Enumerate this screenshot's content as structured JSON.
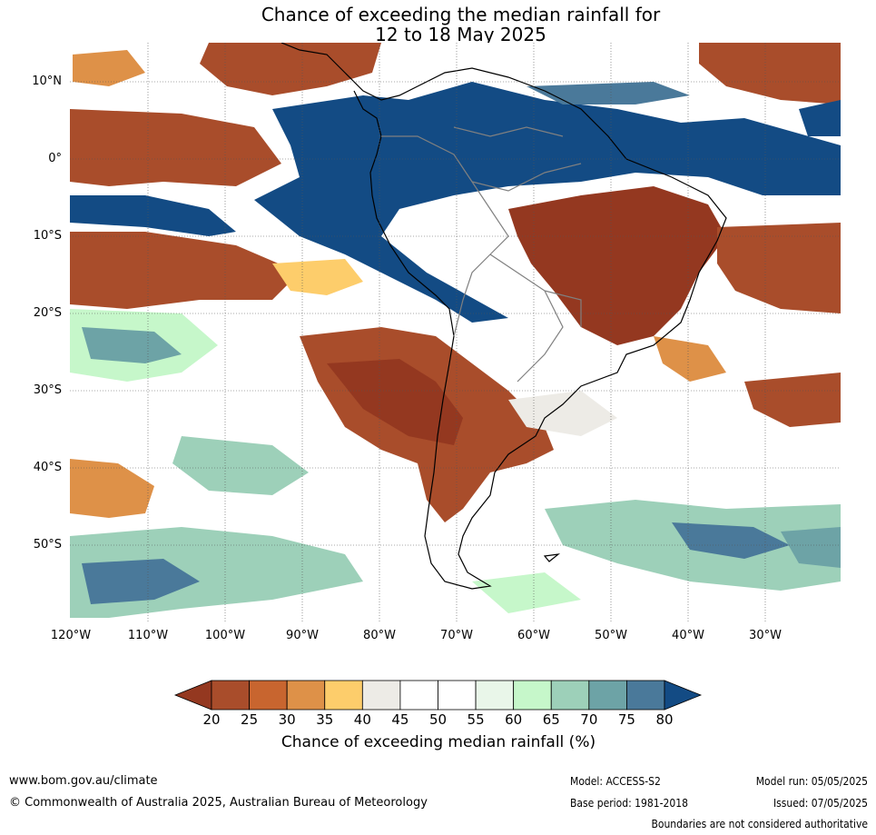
{
  "title": {
    "line1": "Chance of exceeding the median rainfall for",
    "line2": "12 to 18 May 2025"
  },
  "map": {
    "lat_labels": [
      "10°N",
      "0°",
      "10°S",
      "20°S",
      "30°S",
      "40°S",
      "50°S"
    ],
    "lon_labels": [
      "120°W",
      "110°W",
      "100°W",
      "90°W",
      "80°W",
      "70°W",
      "60°W",
      "50°W",
      "40°W",
      "30°W"
    ]
  },
  "colorbar": {
    "ticks": [
      "20",
      "25",
      "30",
      "35",
      "40",
      "45",
      "50",
      "55",
      "60",
      "65",
      "70",
      "75",
      "80"
    ],
    "colors": [
      "#a94d2b",
      "#c8652f",
      "#de9148",
      "#fdcd6b",
      "#edebe6",
      "#ffffff",
      "#ffffff",
      "#e9f6e9",
      "#c6f7ca",
      "#9dd0b9",
      "#6da3a6",
      "#4a799a"
    ],
    "under_color": "#943820",
    "over_color": "#134b84",
    "label": "Chance of exceeding median rainfall (%)"
  },
  "footer": {
    "website": "www.bom.gov.au/climate",
    "copyright": "© Commonwealth of Australia 2025, Australian Bureau of Meteorology",
    "model": "Model: ACCESS-S2",
    "base_period": "Base period: 1981-2018",
    "model_run": "Model run: 05/05/2025",
    "issued": "Issued: 07/05/2025",
    "disclaimer": "Boundaries are not considered authoritative"
  }
}
